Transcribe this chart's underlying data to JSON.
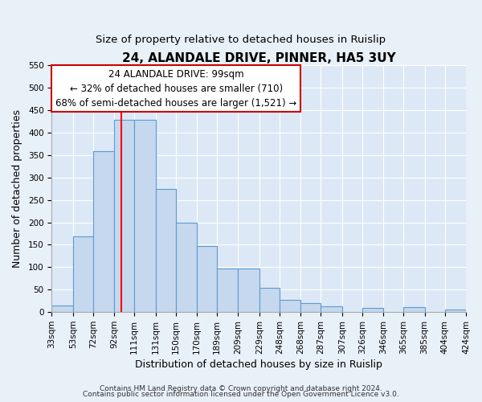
{
  "title": "24, ALANDALE DRIVE, PINNER, HA5 3UY",
  "subtitle": "Size of property relative to detached houses in Ruislip",
  "xlabel": "Distribution of detached houses by size in Ruislip",
  "ylabel": "Number of detached properties",
  "footer_line1": "Contains HM Land Registry data © Crown copyright and database right 2024.",
  "footer_line2": "Contains public sector information licensed under the Open Government Licence v3.0.",
  "annotation_line1": "24 ALANDALE DRIVE: 99sqm",
  "annotation_line2": "← 32% of detached houses are smaller (710)",
  "annotation_line3": "68% of semi-detached houses are larger (1,521) →",
  "bar_edges": [
    33,
    53,
    72,
    92,
    111,
    131,
    150,
    170,
    189,
    209,
    229,
    248,
    268,
    287,
    307,
    326,
    346,
    365,
    385,
    404,
    424
  ],
  "bar_heights": [
    15,
    168,
    358,
    428,
    428,
    275,
    200,
    148,
    97,
    97,
    55,
    28,
    20,
    13,
    0,
    10,
    0,
    12,
    0,
    5
  ],
  "bar_color": "#c5d8ed",
  "bar_edge_color": "#5b9bd5",
  "red_line_x": 99,
  "ylim": [
    0,
    550
  ],
  "yticks": [
    0,
    50,
    100,
    150,
    200,
    250,
    300,
    350,
    400,
    450,
    500,
    550
  ],
  "tick_labels": [
    "33sqm",
    "53sqm",
    "72sqm",
    "92sqm",
    "111sqm",
    "131sqm",
    "150sqm",
    "170sqm",
    "189sqm",
    "209sqm",
    "229sqm",
    "248sqm",
    "268sqm",
    "287sqm",
    "307sqm",
    "326sqm",
    "346sqm",
    "365sqm",
    "385sqm",
    "404sqm",
    "424sqm"
  ],
  "bg_color": "#e8f0f8",
  "plot_bg_color": "#dce8f5",
  "grid_color": "#ffffff",
  "annotation_box_color": "#ffffff",
  "annotation_box_edge": "#cc0000",
  "title_fontsize": 11,
  "subtitle_fontsize": 9.5,
  "axis_label_fontsize": 9,
  "tick_fontsize": 7.5,
  "annotation_fontsize": 8.5,
  "footer_fontsize": 6.5
}
